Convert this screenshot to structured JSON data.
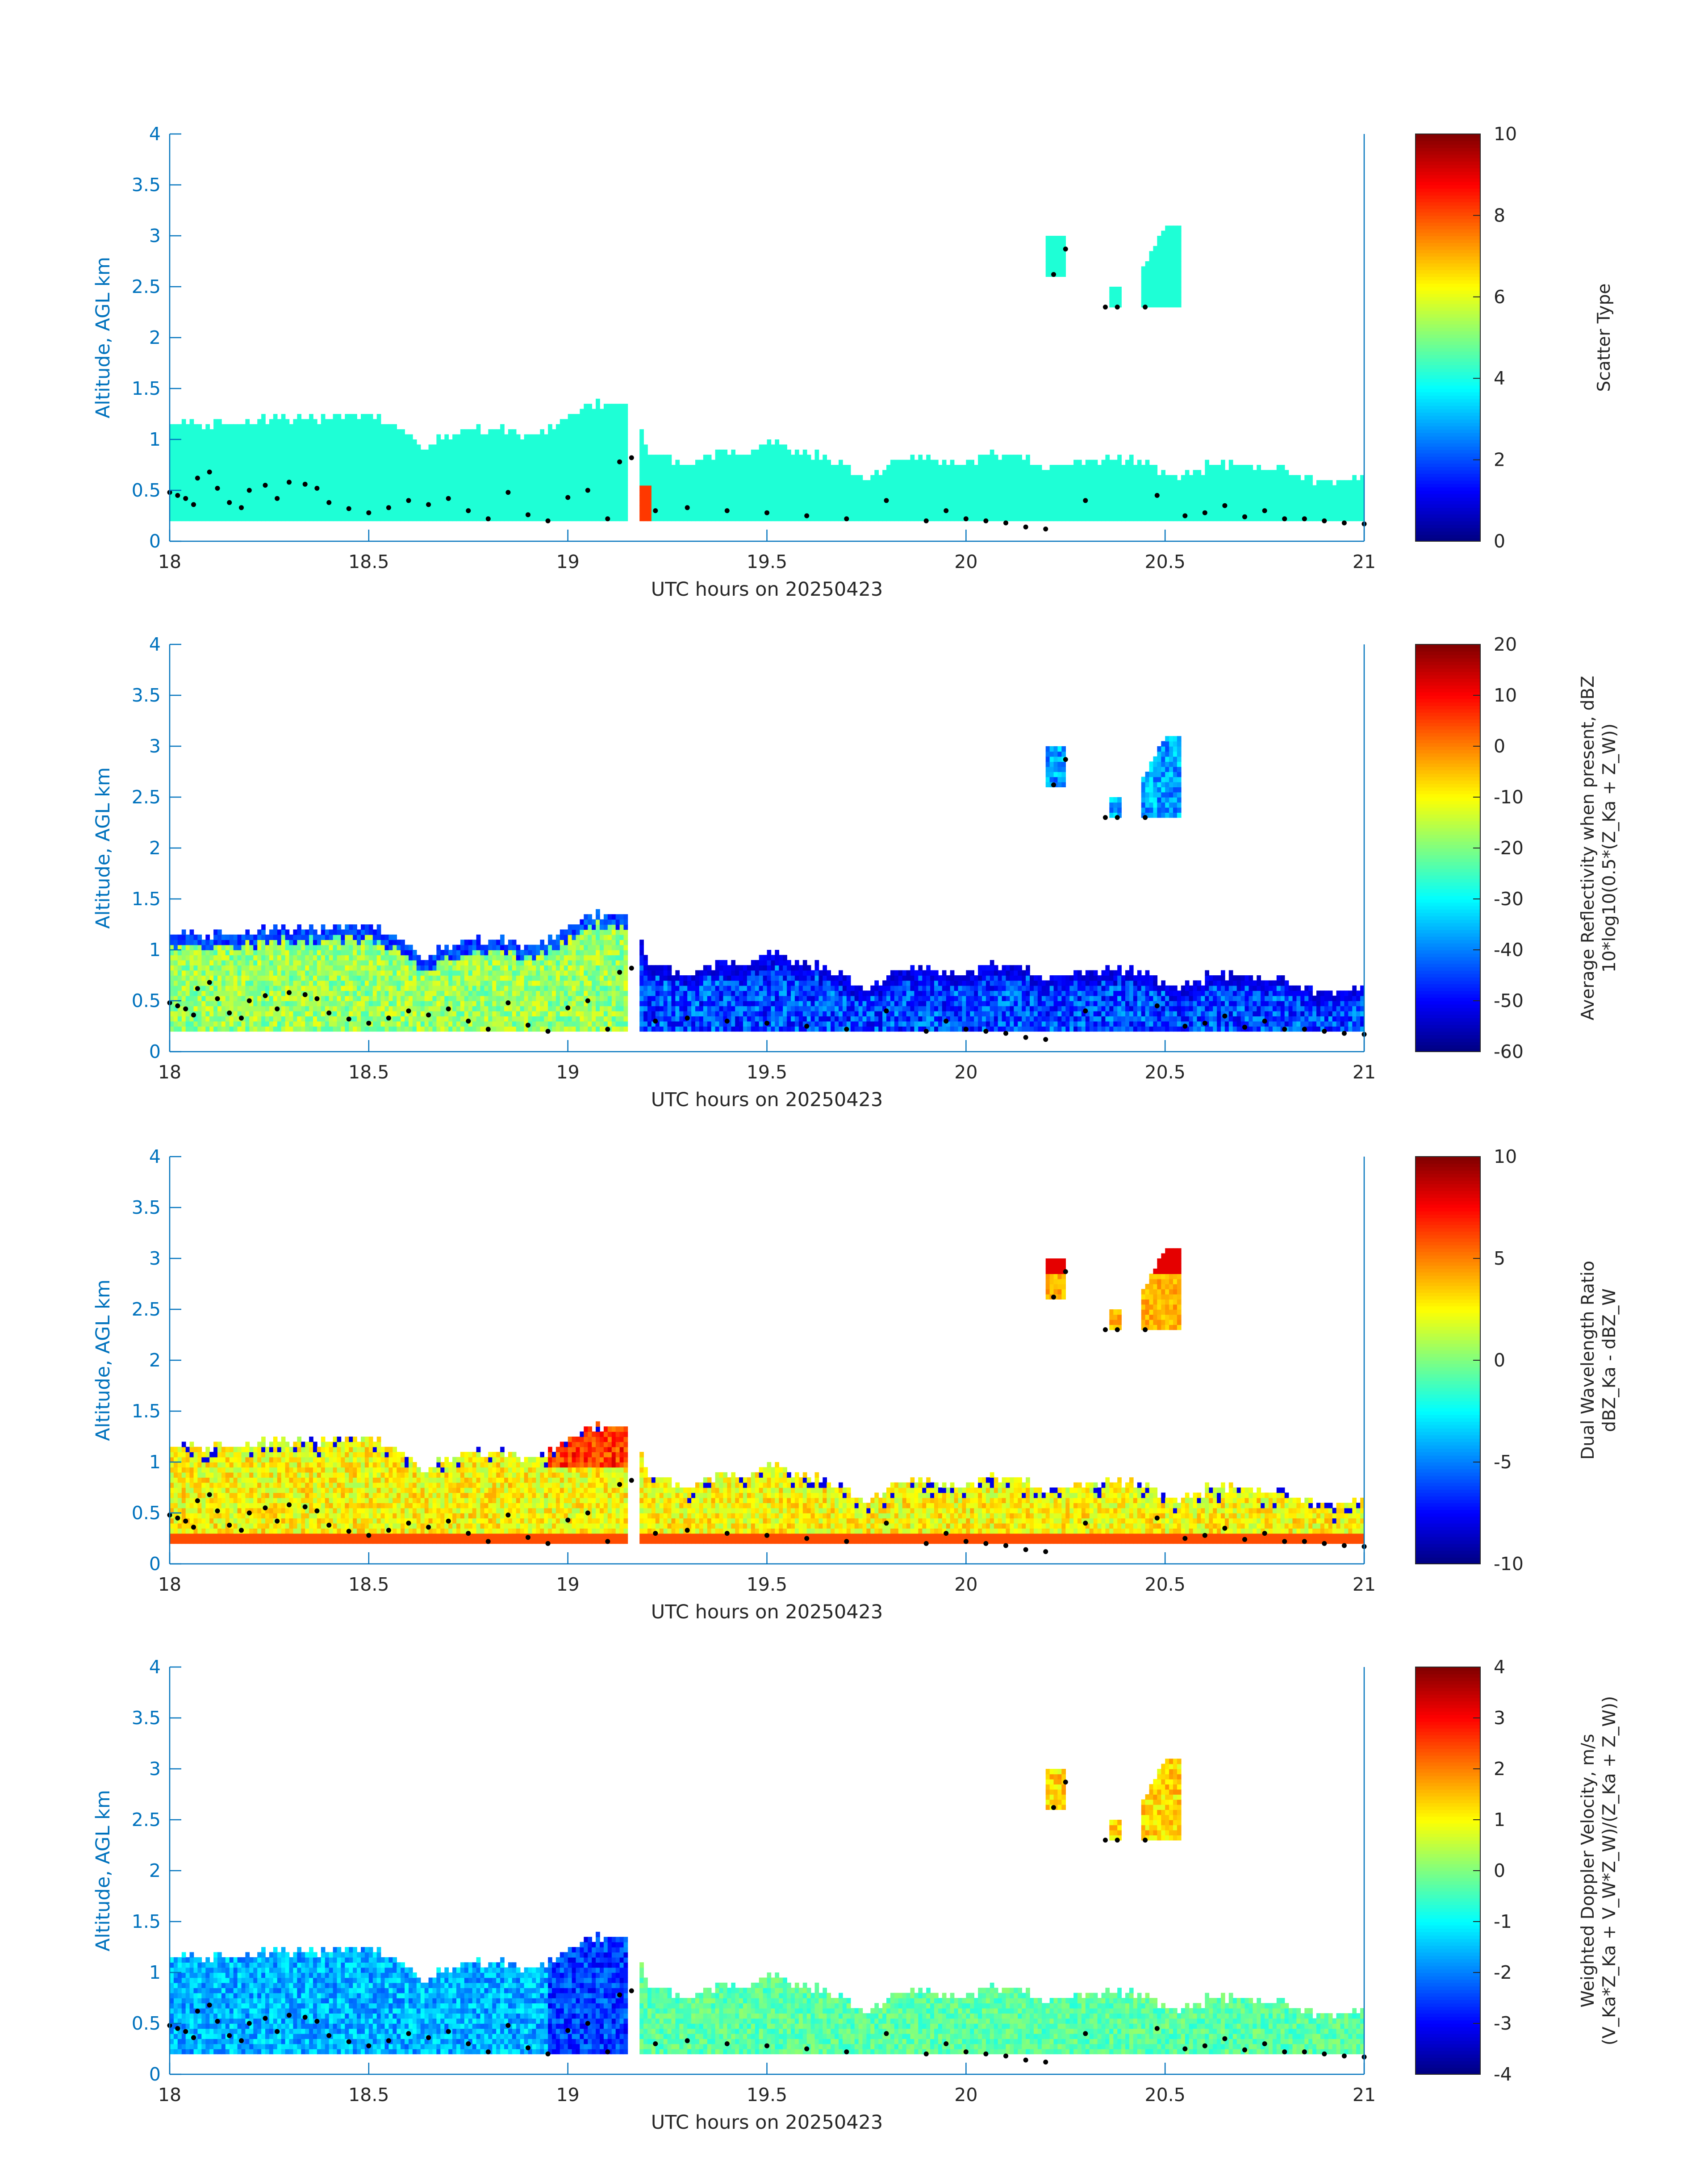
{
  "figure": {
    "x_axis_label": "UTC hours on 20250423",
    "y_axis_label": "Altitude, AGL km"
  },
  "colors": {
    "axis": "#0072BD",
    "text": "#262626",
    "cloud_mask": "#1EFFD6",
    "cloud_base": "#000000"
  },
  "colormap": "jet",
  "chart_data": [
    {
      "type": "heatmap",
      "id": "scatter-type",
      "xlabel": "UTC hours on 20250423",
      "ylabel": "Altitude, AGL km",
      "xlim": [
        18,
        21
      ],
      "ylim": [
        0,
        4
      ],
      "xticks": [
        18,
        18.5,
        19,
        19.5,
        20,
        20.5,
        21
      ],
      "xtick_labels": [
        "18",
        "18.5",
        "19",
        "19.5",
        "20",
        "20.5",
        "21"
      ],
      "yticks": [
        0,
        0.5,
        1,
        1.5,
        2,
        2.5,
        3,
        3.5,
        4
      ],
      "ytick_labels": [
        "0",
        "0.5",
        "1",
        "1.5",
        "2",
        "2.5",
        "3",
        "3.5",
        "4"
      ],
      "colorbar": {
        "label_lines": [
          "Scatter Type"
        ],
        "range": [
          0,
          10
        ],
        "ticks": [
          0,
          2,
          4,
          6,
          8,
          10
        ],
        "tick_labels": [
          "0",
          "2",
          "4",
          "6",
          "8",
          "10"
        ]
      },
      "dominant_value": 3.8,
      "grid": false
    },
    {
      "type": "heatmap",
      "id": "reflectivity",
      "xlabel": "UTC hours on 20250423",
      "ylabel": "Altitude, AGL km",
      "xlim": [
        18,
        21
      ],
      "ylim": [
        0,
        4
      ],
      "xticks": [
        18,
        18.5,
        19,
        19.5,
        20,
        20.5,
        21
      ],
      "xtick_labels": [
        "18",
        "18.5",
        "19",
        "19.5",
        "20",
        "20.5",
        "21"
      ],
      "yticks": [
        0,
        0.5,
        1,
        1.5,
        2,
        2.5,
        3,
        3.5,
        4
      ],
      "ytick_labels": [
        "0",
        "0.5",
        "1",
        "1.5",
        "2",
        "2.5",
        "3",
        "3.5",
        "4"
      ],
      "colorbar": {
        "label_lines": [
          "Average Reflectivity when present, dBZ",
          "10*log10(0.5*(Z_Ka + Z_W))"
        ],
        "range": [
          -60,
          20
        ],
        "ticks": [
          -60,
          -50,
          -40,
          -30,
          -20,
          -10,
          0,
          10,
          20
        ],
        "tick_labels": [
          "-60",
          "-50",
          "-40",
          "-30",
          "-20",
          "-10",
          "0",
          "10",
          "20"
        ]
      },
      "regime_values": {
        "before_19_15": -18,
        "after_19_15": -48
      },
      "grid": false
    },
    {
      "type": "heatmap",
      "id": "dual-wavelength-ratio",
      "xlabel": "UTC hours on 20250423",
      "ylabel": "Altitude, AGL km",
      "xlim": [
        18,
        21
      ],
      "ylim": [
        0,
        4
      ],
      "xticks": [
        18,
        18.5,
        19,
        19.5,
        20,
        20.5,
        21
      ],
      "xtick_labels": [
        "18",
        "18.5",
        "19",
        "19.5",
        "20",
        "20.5",
        "21"
      ],
      "yticks": [
        0,
        0.5,
        1,
        1.5,
        2,
        2.5,
        3,
        3.5,
        4
      ],
      "ytick_labels": [
        "0",
        "0.5",
        "1",
        "1.5",
        "2",
        "2.5",
        "3",
        "3.5",
        "4"
      ],
      "colorbar": {
        "label_lines": [
          "Dual Wavelength Ratio",
          "dBZ_Ka - dBZ_W"
        ],
        "range": [
          -10,
          10
        ],
        "ticks": [
          -10,
          -5,
          0,
          5,
          10
        ],
        "tick_labels": [
          "-10",
          "-5",
          "0",
          "5",
          "10"
        ]
      },
      "regime_values": {
        "typical": 2.5,
        "cloud_top_max": 8,
        "lowest_gate": 6
      },
      "grid": false
    },
    {
      "type": "heatmap",
      "id": "doppler-velocity",
      "xlabel": "UTC hours on 20250423",
      "ylabel": "Altitude, AGL km",
      "xlim": [
        18,
        21
      ],
      "ylim": [
        0,
        4
      ],
      "xticks": [
        18,
        18.5,
        19,
        19.5,
        20,
        20.5,
        21
      ],
      "xtick_labels": [
        "18",
        "18.5",
        "19",
        "19.5",
        "20",
        "20.5",
        "21"
      ],
      "yticks": [
        0,
        0.5,
        1,
        1.5,
        2,
        2.5,
        3,
        3.5,
        4
      ],
      "ytick_labels": [
        "0",
        "0.5",
        "1",
        "1.5",
        "2",
        "2.5",
        "3",
        "3.5",
        "4"
      ],
      "colorbar": {
        "label_lines": [
          "Weighted Doppler Velocity, m/s",
          "(V_Ka*Z_Ka + V_W*Z_W)/(Z_Ka + Z_W))"
        ],
        "range": [
          -4,
          4
        ],
        "ticks": [
          -4,
          -3,
          -2,
          -1,
          0,
          1,
          2,
          3,
          4
        ],
        "tick_labels": [
          "-4",
          "-3",
          "-2",
          "-1",
          "0",
          "1",
          "2",
          "3",
          "4"
        ]
      },
      "regime_values": {
        "before_19_15": -1.6,
        "after_19_15": -0.3,
        "upper_cloud": 1.3
      },
      "grid": false
    }
  ],
  "cloud_structure": {
    "time_step_hours": 0.01,
    "height_step_km": 0.05,
    "lowest_gate_km": 0.2,
    "gap_hours": [
      19.15,
      19.18
    ],
    "tops_km": [
      {
        "t": 18.0,
        "h": 1.12
      },
      {
        "t": 18.15,
        "h": 1.12
      },
      {
        "t": 18.25,
        "h": 1.2
      },
      {
        "t": 18.35,
        "h": 1.18
      },
      {
        "t": 18.45,
        "h": 1.2
      },
      {
        "t": 18.5,
        "h": 1.2
      },
      {
        "t": 18.58,
        "h": 1.08
      },
      {
        "t": 18.62,
        "h": 0.9
      },
      {
        "t": 18.72,
        "h": 1.05
      },
      {
        "t": 18.82,
        "h": 1.1
      },
      {
        "t": 18.9,
        "h": 0.98
      },
      {
        "t": 18.98,
        "h": 1.15
      },
      {
        "t": 19.05,
        "h": 1.35
      },
      {
        "t": 19.12,
        "h": 1.32
      },
      {
        "t": 19.15,
        "h": 1.25
      },
      {
        "t": 19.2,
        "h": 0.85
      },
      {
        "t": 19.28,
        "h": 0.72
      },
      {
        "t": 19.35,
        "h": 0.85
      },
      {
        "t": 19.45,
        "h": 0.82
      },
      {
        "t": 19.5,
        "h": 0.95
      },
      {
        "t": 19.6,
        "h": 0.85
      },
      {
        "t": 19.68,
        "h": 0.75
      },
      {
        "t": 19.75,
        "h": 0.58
      },
      {
        "t": 19.82,
        "h": 0.8
      },
      {
        "t": 19.9,
        "h": 0.8
      },
      {
        "t": 19.97,
        "h": 0.72
      },
      {
        "t": 20.05,
        "h": 0.82
      },
      {
        "t": 20.15,
        "h": 0.78
      },
      {
        "t": 20.2,
        "h": 0.68
      },
      {
        "t": 20.25,
        "h": 0.75
      },
      {
        "t": 20.35,
        "h": 0.78
      },
      {
        "t": 20.45,
        "h": 0.75
      },
      {
        "t": 20.5,
        "h": 0.62
      },
      {
        "t": 20.55,
        "h": 0.62
      },
      {
        "t": 20.62,
        "h": 0.75
      },
      {
        "t": 20.7,
        "h": 0.68
      },
      {
        "t": 20.78,
        "h": 0.7
      },
      {
        "t": 20.85,
        "h": 0.6
      },
      {
        "t": 20.92,
        "h": 0.55
      },
      {
        "t": 21.0,
        "h": 0.65
      }
    ],
    "upper_clouds": [
      {
        "t0": 20.2,
        "t1": 20.25,
        "bottom_km": 2.6,
        "top_km": 2.95
      },
      {
        "t0": 20.36,
        "t1": 20.39,
        "bottom_km": 2.3,
        "top_km": 2.45
      },
      {
        "t0": 20.44,
        "t1": 20.54,
        "bottom_km": 2.3,
        "top_km": 3.05
      }
    ]
  },
  "cloud_base_points_km": [
    [
      18.0,
      0.48
    ],
    [
      18.02,
      0.45
    ],
    [
      18.04,
      0.42
    ],
    [
      18.06,
      0.36
    ],
    [
      18.07,
      0.62
    ],
    [
      18.1,
      0.68
    ],
    [
      18.12,
      0.52
    ],
    [
      18.15,
      0.38
    ],
    [
      18.18,
      0.33
    ],
    [
      18.2,
      0.5
    ],
    [
      18.24,
      0.55
    ],
    [
      18.27,
      0.42
    ],
    [
      18.3,
      0.58
    ],
    [
      18.34,
      0.56
    ],
    [
      18.37,
      0.52
    ],
    [
      18.4,
      0.38
    ],
    [
      18.45,
      0.32
    ],
    [
      18.5,
      0.28
    ],
    [
      18.55,
      0.33
    ],
    [
      18.6,
      0.4
    ],
    [
      18.65,
      0.36
    ],
    [
      18.7,
      0.42
    ],
    [
      18.75,
      0.3
    ],
    [
      18.8,
      0.22
    ],
    [
      18.85,
      0.48
    ],
    [
      18.9,
      0.26
    ],
    [
      18.95,
      0.2
    ],
    [
      19.0,
      0.43
    ],
    [
      19.05,
      0.5
    ],
    [
      19.1,
      0.22
    ],
    [
      19.13,
      0.78
    ],
    [
      19.16,
      0.82
    ],
    [
      19.22,
      0.3
    ],
    [
      19.3,
      0.33
    ],
    [
      19.4,
      0.3
    ],
    [
      19.5,
      0.28
    ],
    [
      19.6,
      0.25
    ],
    [
      19.7,
      0.22
    ],
    [
      19.8,
      0.4
    ],
    [
      19.9,
      0.2
    ],
    [
      19.95,
      0.3
    ],
    [
      20.0,
      0.22
    ],
    [
      20.05,
      0.2
    ],
    [
      20.1,
      0.18
    ],
    [
      20.15,
      0.14
    ],
    [
      20.2,
      0.12
    ],
    [
      20.22,
      2.62
    ],
    [
      20.25,
      2.87
    ],
    [
      20.3,
      0.4
    ],
    [
      20.35,
      2.3
    ],
    [
      20.38,
      2.3
    ],
    [
      20.45,
      2.3
    ],
    [
      20.48,
      0.45
    ],
    [
      20.55,
      0.25
    ],
    [
      20.6,
      0.28
    ],
    [
      20.65,
      0.35
    ],
    [
      20.7,
      0.24
    ],
    [
      20.75,
      0.3
    ],
    [
      20.8,
      0.22
    ],
    [
      20.85,
      0.22
    ],
    [
      20.9,
      0.2
    ],
    [
      20.95,
      0.18
    ],
    [
      21.0,
      0.17
    ]
  ]
}
